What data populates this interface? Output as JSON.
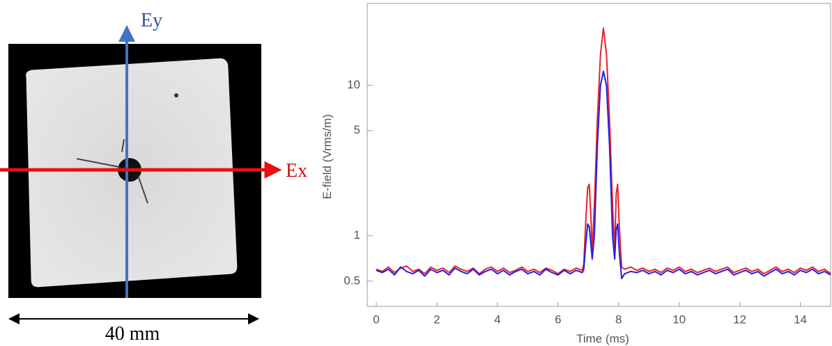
{
  "figure_labels": {
    "ey": "Ey",
    "ex": "Ex",
    "scale": "40 mm"
  },
  "chart_data": {
    "type": "line",
    "x_label": "Time (ms)",
    "y_label": "E-field (Vrms/m)",
    "log_y": true,
    "xlim": [
      -0.3,
      15
    ],
    "ylim": [
      0.34,
      35
    ],
    "xticks": [
      0,
      2,
      4,
      6,
      8,
      10,
      12,
      14
    ],
    "yticks": [
      0.5,
      1,
      5,
      10
    ],
    "x": [
      0,
      0.2,
      0.4,
      0.6,
      0.8,
      1,
      1.2,
      1.4,
      1.6,
      1.8,
      2,
      2.2,
      2.4,
      2.6,
      2.8,
      3,
      3.2,
      3.4,
      3.6,
      3.8,
      4,
      4.2,
      4.4,
      4.6,
      4.8,
      5,
      5.2,
      5.4,
      5.6,
      5.8,
      6,
      6.2,
      6.4,
      6.6,
      6.8,
      6.85,
      6.92,
      6.98,
      7.03,
      7.08,
      7.13,
      7.2,
      7.3,
      7.4,
      7.5,
      7.6,
      7.7,
      7.8,
      7.87,
      7.92,
      7.97,
      8.02,
      8.1,
      8.2,
      8.4,
      8.6,
      8.8,
      9,
      9.2,
      9.4,
      9.6,
      9.8,
      10,
      10.2,
      10.4,
      10.6,
      10.8,
      11,
      11.2,
      11.4,
      11.6,
      11.8,
      12,
      12.2,
      12.4,
      12.6,
      12.8,
      13,
      13.2,
      13.4,
      13.6,
      13.8,
      14,
      14.2,
      14.4,
      14.6,
      14.8,
      15
    ],
    "series": [
      {
        "color": "#e8202a",
        "values": [
          0.6,
          0.58,
          0.62,
          0.57,
          0.61,
          0.63,
          0.58,
          0.6,
          0.56,
          0.62,
          0.59,
          0.61,
          0.57,
          0.63,
          0.6,
          0.58,
          0.61,
          0.56,
          0.6,
          0.62,
          0.58,
          0.61,
          0.57,
          0.59,
          0.62,
          0.58,
          0.6,
          0.57,
          0.61,
          0.59,
          0.56,
          0.6,
          0.58,
          0.61,
          0.59,
          0.65,
          1.3,
          2.1,
          2.2,
          1.4,
          0.8,
          1.6,
          6,
          16,
          24,
          16,
          6,
          1.6,
          0.8,
          1.9,
          2.2,
          1.2,
          0.62,
          0.6,
          0.62,
          0.59,
          0.61,
          0.58,
          0.6,
          0.57,
          0.61,
          0.59,
          0.62,
          0.58,
          0.6,
          0.57,
          0.59,
          0.61,
          0.58,
          0.6,
          0.62,
          0.57,
          0.59,
          0.61,
          0.58,
          0.6,
          0.56,
          0.59,
          0.62,
          0.58,
          0.6,
          0.57,
          0.61,
          0.59,
          0.62,
          0.58,
          0.6,
          0.56
        ]
      },
      {
        "color": "#2020e0",
        "values": [
          0.59,
          0.57,
          0.6,
          0.55,
          0.62,
          0.58,
          0.56,
          0.59,
          0.54,
          0.6,
          0.57,
          0.59,
          0.55,
          0.61,
          0.58,
          0.56,
          0.6,
          0.55,
          0.58,
          0.6,
          0.56,
          0.59,
          0.55,
          0.58,
          0.6,
          0.56,
          0.58,
          0.55,
          0.6,
          0.57,
          0.55,
          0.59,
          0.56,
          0.59,
          0.57,
          0.6,
          0.9,
          1.2,
          1.15,
          0.9,
          0.7,
          1.0,
          4,
          10,
          12.4,
          10,
          4,
          1.0,
          0.7,
          1.1,
          1.2,
          0.8,
          0.52,
          0.56,
          0.58,
          0.57,
          0.59,
          0.56,
          0.58,
          0.55,
          0.59,
          0.57,
          0.6,
          0.56,
          0.58,
          0.55,
          0.57,
          0.59,
          0.56,
          0.58,
          0.6,
          0.55,
          0.57,
          0.59,
          0.56,
          0.58,
          0.54,
          0.57,
          0.6,
          0.56,
          0.58,
          0.55,
          0.59,
          0.57,
          0.6,
          0.56,
          0.58,
          0.55
        ]
      }
    ]
  }
}
